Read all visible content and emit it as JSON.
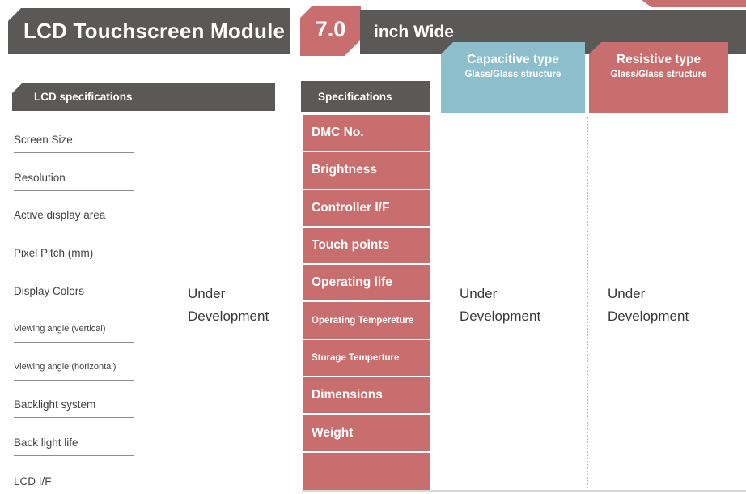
{
  "header": {
    "title": "LCD Touchscreen Module",
    "size": "7.0",
    "size_unit": "inch Wide"
  },
  "type_columns": [
    {
      "title": "Capacitive type",
      "subtitle": "Glass/Glass structure",
      "status": "Under Development"
    },
    {
      "title": "Resistive type",
      "subtitle": "Glass/Glass structure",
      "status": "Under Development"
    }
  ],
  "lcd_specs": {
    "header": "LCD specifications",
    "status": "Under Development",
    "rows": [
      {
        "label": "Screen Size"
      },
      {
        "label": "Resolution"
      },
      {
        "label": "Active display area"
      },
      {
        "label": "Pixel Pitch (mm)"
      },
      {
        "label": "Display Colors"
      },
      {
        "label": "Viewing angle (vertical)",
        "small": true
      },
      {
        "label": "Viewing angle (horizontal)",
        "small": true
      },
      {
        "label": "Backlight system"
      },
      {
        "label": "Back light life"
      },
      {
        "label": "LCD I/F"
      }
    ]
  },
  "touch_specs": {
    "header": "Specifications",
    "rows": [
      {
        "label": "DMC No."
      },
      {
        "label": "Brightness"
      },
      {
        "label": "Controller I/F"
      },
      {
        "label": "Touch points"
      },
      {
        "label": "Operating life"
      },
      {
        "label": "Operating Tempereture",
        "small": true
      },
      {
        "label": "Storage Temperture",
        "small": true
      },
      {
        "label": "Dimensions"
      },
      {
        "label": "Weight"
      }
    ]
  },
  "colors": {
    "dark": "#5b5858",
    "accent_red": "#c96e6e",
    "accent_blue": "#8cbecc",
    "text": "#3b3736"
  }
}
